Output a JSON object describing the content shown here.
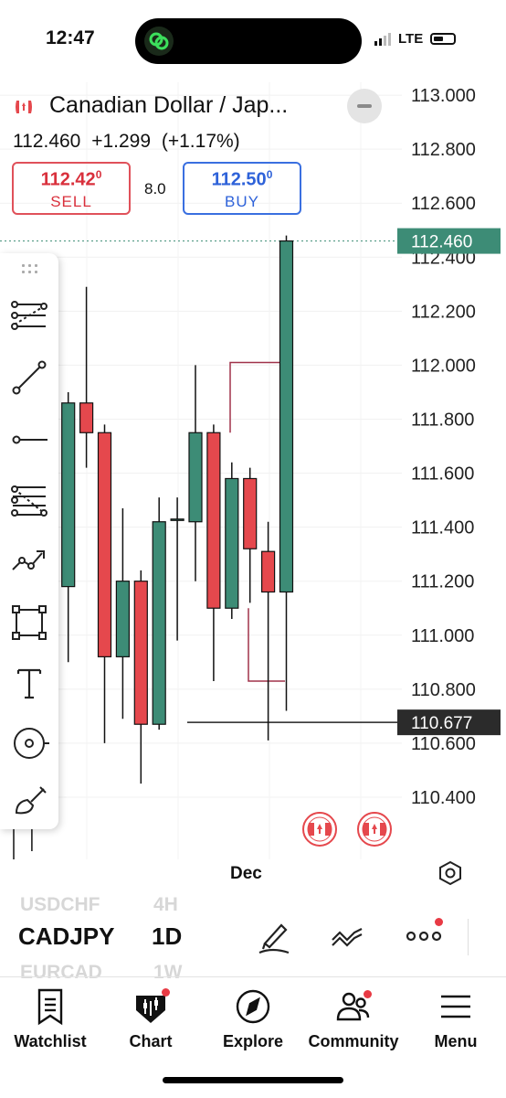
{
  "status_bar": {
    "time": "12:47",
    "network": "LTE"
  },
  "header": {
    "title": "Canadian Dollar / Jap...",
    "last_price": "112.460",
    "change": "+1.299",
    "change_pct": "(+1.17%)",
    "spread": "8.0"
  },
  "sell": {
    "price_main": "112.42",
    "price_pip": "0",
    "label": "SELL"
  },
  "buy": {
    "price_main": "112.50",
    "price_pip": "0",
    "label": "BUY"
  },
  "chart": {
    "x_label": "Dec",
    "colors": {
      "up": "#3d8c76",
      "down": "#e5484d",
      "last_price_tag": "#3d8c76",
      "cursor_tag": "#2b2b2b"
    }
  },
  "chart_data": {
    "type": "candlestick",
    "symbol": "CADJPY",
    "timeframe": "1D",
    "y_ticks": [
      "113.000",
      "112.800",
      "112.600",
      "112.400",
      "112.200",
      "112.000",
      "111.800",
      "111.600",
      "111.400",
      "111.200",
      "111.000",
      "110.800",
      "110.600",
      "110.400"
    ],
    "ylim": [
      110.31,
      113.04
    ],
    "last_price": 112.46,
    "crosshair_price": 110.677,
    "crosshair_label": "110.677",
    "last_price_label": "112.460",
    "x_ticks": [
      "Dec"
    ],
    "candles": [
      {
        "o": 110.35,
        "h": 110.4,
        "l": 110.0,
        "c": 110.3
      },
      {
        "o": 110.33,
        "h": 110.45,
        "l": 110.2,
        "c": 110.42
      },
      {
        "o": 110.45,
        "h": 111.4,
        "l": 110.3,
        "c": 111.18
      },
      {
        "o": 111.18,
        "h": 111.9,
        "l": 110.9,
        "c": 111.86
      },
      {
        "o": 111.86,
        "h": 112.29,
        "l": 111.62,
        "c": 111.75
      },
      {
        "o": 111.75,
        "h": 111.78,
        "l": 110.6,
        "c": 110.92
      },
      {
        "o": 110.92,
        "h": 111.47,
        "l": 110.69,
        "c": 111.2
      },
      {
        "o": 111.2,
        "h": 111.24,
        "l": 110.45,
        "c": 110.67
      },
      {
        "o": 110.67,
        "h": 111.51,
        "l": 110.65,
        "c": 111.42
      },
      {
        "o": 111.43,
        "h": 111.51,
        "l": 110.98,
        "c": 111.43
      },
      {
        "o": 111.42,
        "h": 112.0,
        "l": 111.2,
        "c": 111.75
      },
      {
        "o": 111.75,
        "h": 111.78,
        "l": 110.83,
        "c": 111.1
      },
      {
        "o": 111.1,
        "h": 111.64,
        "l": 111.06,
        "c": 111.58
      },
      {
        "o": 111.58,
        "h": 111.62,
        "l": 111.12,
        "c": 111.32
      },
      {
        "o": 111.31,
        "h": 111.42,
        "l": 110.61,
        "c": 111.16
      },
      {
        "o": 111.16,
        "h": 112.48,
        "l": 110.72,
        "c": 112.46
      }
    ]
  },
  "toolbar": {
    "tools": [
      "trend-lines-icon",
      "line-icon",
      "horizontal-ray-icon",
      "fib-icon",
      "pattern-icon",
      "rectangle-icon",
      "text-icon",
      "measure-icon",
      "brush-icon"
    ]
  },
  "symbol_strip": {
    "prev_symbol": "USDCHF",
    "prev_tf": "4H",
    "symbol": "CADJPY",
    "timeframe": "1D",
    "next_symbol": "EURCAD",
    "next_tf": "1W"
  },
  "tabs": [
    {
      "label": "Watchlist",
      "icon": "watchlist-icon"
    },
    {
      "label": "Chart",
      "icon": "chart-icon"
    },
    {
      "label": "Explore",
      "icon": "compass-icon"
    },
    {
      "label": "Community",
      "icon": "community-icon"
    },
    {
      "label": "Menu",
      "icon": "hamburger-icon"
    }
  ]
}
